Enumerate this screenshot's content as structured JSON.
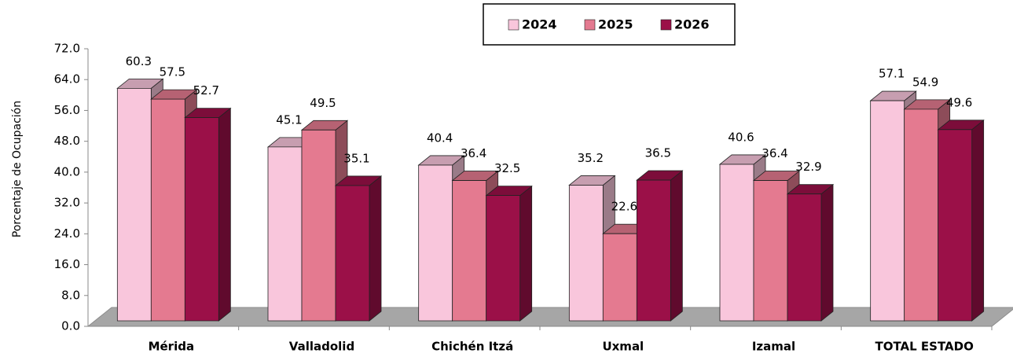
{
  "chart_data": {
    "type": "bar3d",
    "y_axis_label": "Porcentaje de Ocupación",
    "categories": [
      "Mérida",
      "Valladolid",
      "Chichén Itzá",
      "Uxmal",
      "Izamal",
      "TOTAL ESTADO"
    ],
    "series": [
      {
        "name": "2024",
        "color": "#f9c6dc",
        "values": [
          60.3,
          45.1,
          40.4,
          35.2,
          40.6,
          57.1
        ]
      },
      {
        "name": "2025",
        "color": "#e47a90",
        "values": [
          57.5,
          49.5,
          36.4,
          22.6,
          36.4,
          54.9
        ]
      },
      {
        "name": "2026",
        "color": "#9b1048",
        "values": [
          52.7,
          35.1,
          32.5,
          36.5,
          32.9,
          49.6
        ]
      }
    ],
    "ylim": [
      0,
      72
    ],
    "yticks": [
      {
        "value": 0,
        "label": "0.0"
      },
      {
        "value": 8,
        "label": "8.0"
      },
      {
        "value": 16,
        "label": "16.0"
      },
      {
        "value": 24,
        "label": "24.0"
      },
      {
        "value": 32,
        "label": "32.0"
      },
      {
        "value": 40,
        "label": "40.0"
      },
      {
        "value": 48,
        "label": "48.0"
      },
      {
        "value": 56,
        "label": "56.0"
      },
      {
        "value": 64,
        "label": "64.0"
      },
      {
        "value": 72,
        "label": "72.0"
      }
    ],
    "legend": "top"
  }
}
